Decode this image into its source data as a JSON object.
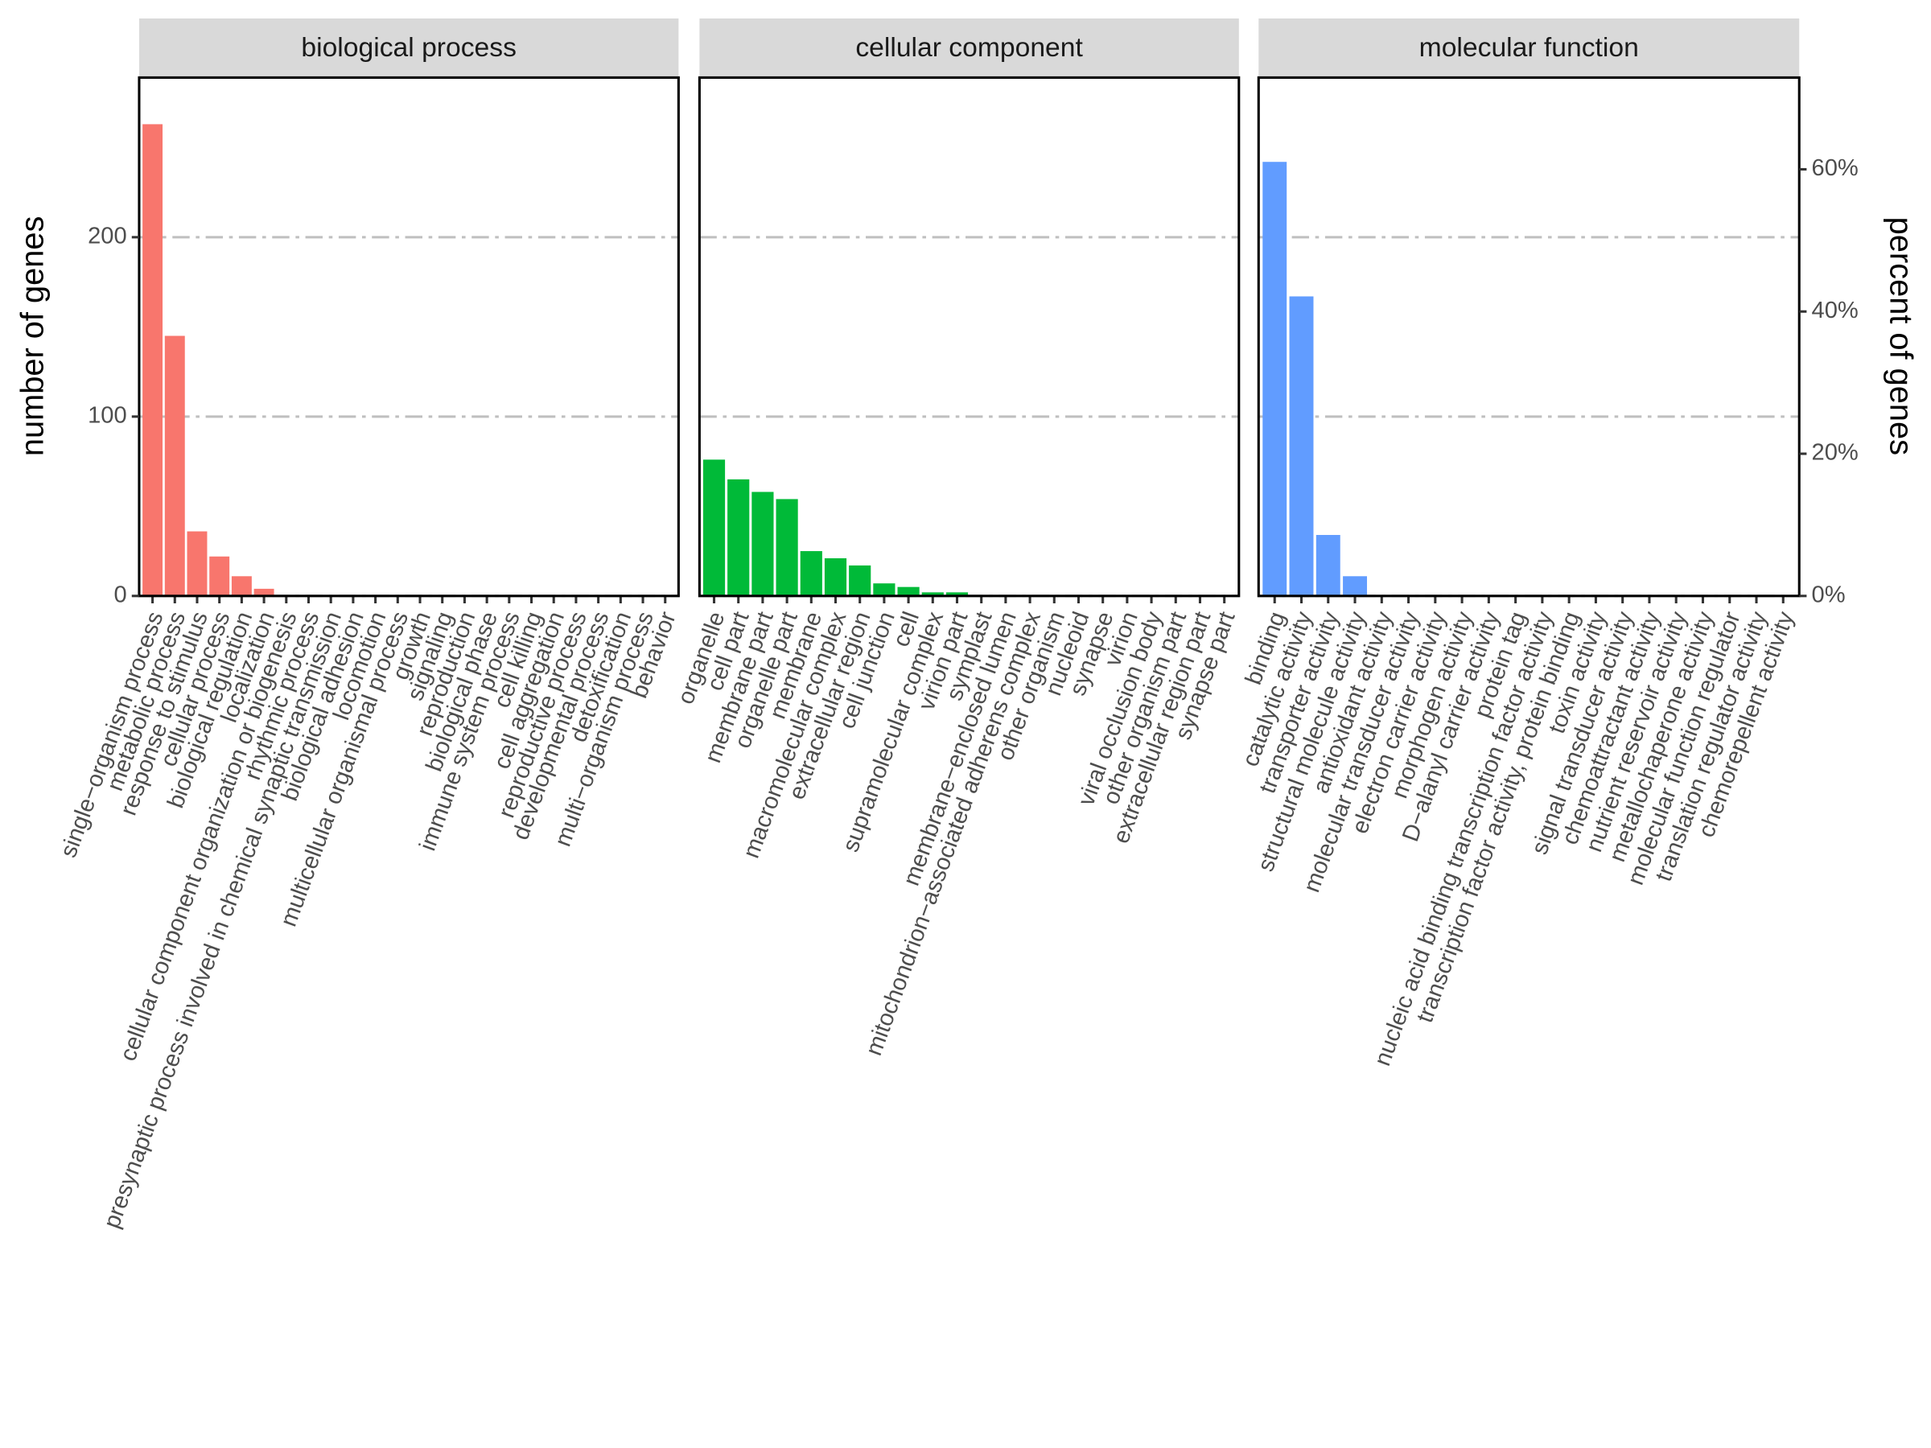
{
  "chart_data": {
    "type": "bar",
    "ylabel": "number of genes",
    "y2label": "percent of genes",
    "ylim": [
      0,
      289
    ],
    "yticks": [
      0,
      100,
      200
    ],
    "y2lim": [
      0,
      72.9
    ],
    "y2ticks": [
      {
        "value": 0,
        "label": "0%"
      },
      {
        "value": 20,
        "label": "20%"
      },
      {
        "value": 40,
        "label": "40%"
      },
      {
        "value": 60,
        "label": "60%"
      }
    ],
    "grid": true,
    "facets": [
      {
        "title": "biological process",
        "color": "#F8766D",
        "categories": [
          "single−organism process",
          "metabolic process",
          "response to stimulus",
          "cellular process",
          "biological regulation",
          "localization",
          "cellular component organization or biogenesis",
          "rhythmic process",
          "presynaptic process involved in chemical synaptic transmission",
          "biological adhesion",
          "locomotion",
          "multicellular organismal process",
          "growth",
          "signaling",
          "reproduction",
          "biological phase",
          "immune system process",
          "cell killing",
          "cell aggregation",
          "reproductive process",
          "developmental process",
          "detoxification",
          "multi−organism process",
          "behavior"
        ],
        "values": [
          263,
          145,
          36,
          22,
          11,
          4,
          0,
          0,
          0,
          0,
          0,
          0,
          0,
          0,
          0,
          0,
          0,
          0,
          0,
          0,
          0,
          0,
          0,
          0
        ]
      },
      {
        "title": "cellular component",
        "color": "#00BA38",
        "categories": [
          "organelle",
          "cell part",
          "membrane part",
          "organelle part",
          "membrane",
          "macromolecular complex",
          "extracellular region",
          "cell junction",
          "cell",
          "supramolecular complex",
          "virion part",
          "symplast",
          "membrane−enclosed lumen",
          "mitochondrion−associated adherens complex",
          "other organism",
          "nucleoid",
          "synapse",
          "virion",
          "viral occlusion body",
          "other organism part",
          "extracellular region part",
          "synapse part"
        ],
        "values": [
          76,
          65,
          58,
          54,
          25,
          21,
          17,
          7,
          5,
          2,
          2,
          0,
          0,
          0,
          0,
          0,
          0,
          0,
          0,
          0,
          0,
          0
        ]
      },
      {
        "title": "molecular function",
        "color": "#619CFF",
        "categories": [
          "binding",
          "catalytic activity",
          "transporter activity",
          "structural molecule activity",
          "antioxidant activity",
          "molecular transducer activity",
          "electron carrier activity",
          "morphogen activity",
          "D−alanyl carrier activity",
          "protein tag",
          "nucleic acid binding transcription factor activity",
          "transcription factor activity, protein binding",
          "toxin activity",
          "signal transducer activity",
          "chemoattractant activity",
          "nutrient reservoir activity",
          "metallochaperone activity",
          "molecular function regulator",
          "translation regulator activity",
          "chemorepellent activity"
        ],
        "values": [
          242,
          167,
          34,
          11,
          0,
          0,
          0,
          0,
          0,
          0,
          0,
          0,
          0,
          0,
          0,
          0,
          0,
          0,
          0,
          0
        ]
      }
    ]
  }
}
